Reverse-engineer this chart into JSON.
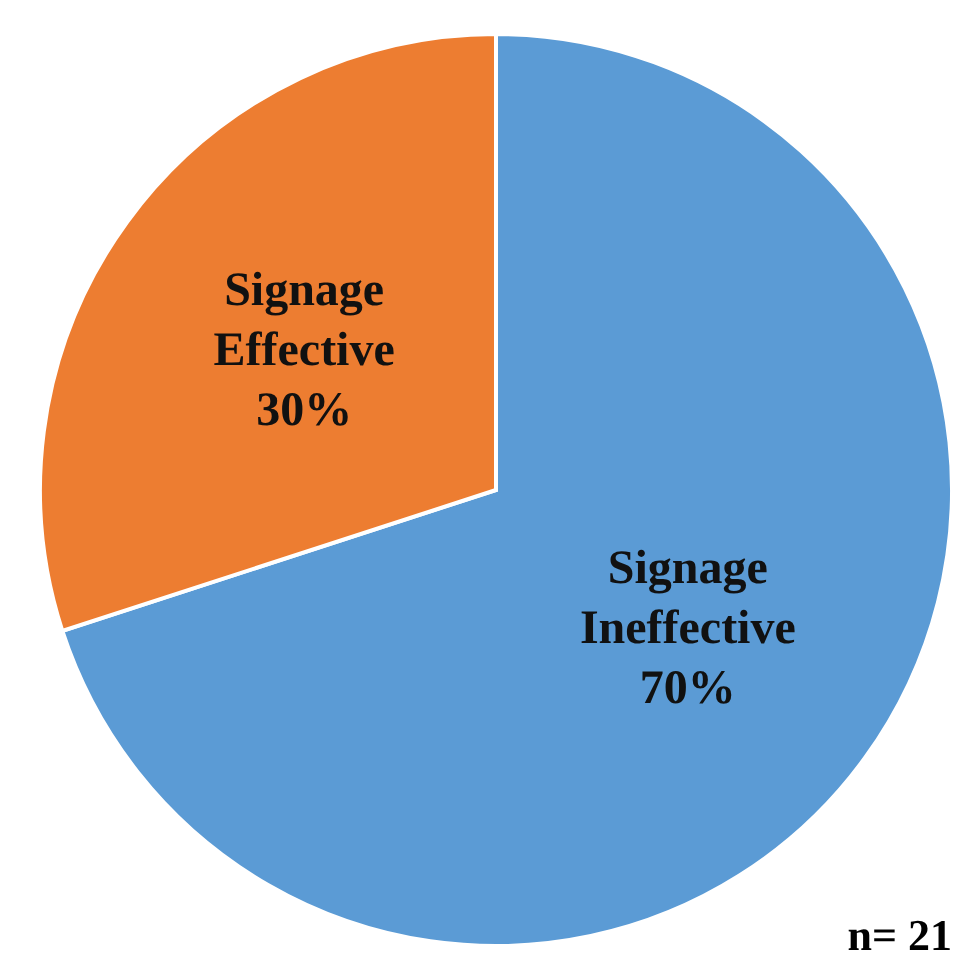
{
  "chart_data": {
    "type": "pie",
    "categories": [
      "Signage Ineffective",
      "Signage Effective"
    ],
    "values": [
      70,
      30
    ],
    "colors": [
      "#5b9bd5",
      "#ed7d31"
    ],
    "value_labels": [
      "70%",
      "30%"
    ],
    "annotations": [
      "n= 21"
    ]
  }
}
